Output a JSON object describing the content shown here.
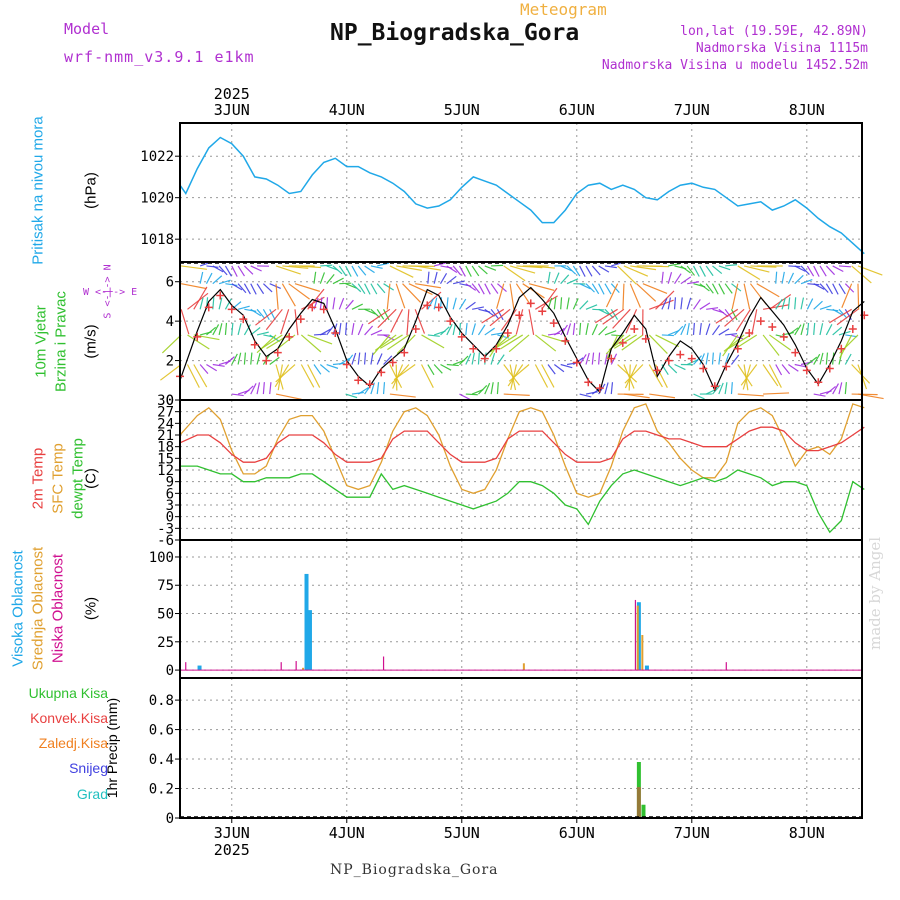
{
  "header": {
    "model_label": "Model",
    "model_name": "wrf-nmm_v3.9.1 e1km",
    "meteogram": "Meteogram",
    "title": "NP_Biogradska_Gora",
    "lonlat": "lon,lat (19.59E, 42.89N)",
    "elevation": "Nadmorska Visina 1115m",
    "model_elevation": "Nadmorska Visina u modelu 1452.52m"
  },
  "footer": {
    "station": "NP_Biogradska_Gora",
    "watermark": "made by Angel"
  },
  "time_axis": {
    "year": "2025",
    "days": [
      "3JUN",
      "4JUN",
      "5JUN",
      "6JUN",
      "7JUN",
      "8JUN"
    ]
  },
  "panels": {
    "pressure": {
      "label": "Pritisak na nivou mora",
      "unit": "(hPa)",
      "ticks": [
        "1022",
        "1020",
        "1018"
      ]
    },
    "wind": {
      "label1": "10m Vjetar",
      "label2": "Brzina i Pravac",
      "unit": "(m/s)",
      "compass": "W <-|-> E",
      "compass_ns": "S <-|-> N",
      "ticks": [
        "6",
        "4",
        "2",
        "0"
      ]
    },
    "temp": {
      "label1": "2m Temp",
      "label2": "SFC Temp",
      "label3": "dewpt Temp",
      "unit": "(C)",
      "ticks": [
        "30",
        "27",
        "24",
        "21",
        "18",
        "15",
        "12",
        "9",
        "6",
        "3",
        "0",
        "-3",
        "-6"
      ]
    },
    "cloud": {
      "label1": "Visoka Oblacnost",
      "label2": "Srednja Oblacnost",
      "label3": "Niska Oblacnost",
      "unit": "(%)",
      "ticks": [
        "100",
        "75",
        "50",
        "25",
        "0"
      ]
    },
    "precip": {
      "labels": [
        "Ukupna Kisa",
        "Konvek.Kisa",
        "Zaledj.Kisa",
        "Snijeg",
        "Grad"
      ],
      "unit": "1hr Precip (mm)",
      "ticks": [
        "0.8",
        "0.6",
        "0.4",
        "0.2",
        "0"
      ]
    }
  },
  "colors": {
    "pressure": "#20a8e8",
    "temp2m": "#e84040",
    "sfc": "#e0a030",
    "dewpt": "#30c030",
    "high_cloud": "#20a8e8",
    "mid_cloud": "#e0a030",
    "low_cloud": "#d01090",
    "rain_total": "#30c030",
    "rain_conv": "#e84040",
    "freezing": "#f08020",
    "snow": "#4040e0",
    "hail": "#20c0c0",
    "wind_speed": "#000000",
    "wind_gust": "#e84040",
    "purple": "#b030d0"
  },
  "chart_data": [
    {
      "type": "line",
      "title": "Pritisak na nivou mora",
      "ylabel": "(hPa)",
      "ylim": [
        1016.9,
        1023.6
      ],
      "x_unit": "days since 2 JUN 2025 00 UTC",
      "x": [
        2.55,
        2.6,
        2.7,
        2.8,
        2.9,
        3.0,
        3.1,
        3.2,
        3.3,
        3.4,
        3.5,
        3.6,
        3.7,
        3.8,
        3.9,
        4.0,
        4.1,
        4.2,
        4.3,
        4.4,
        4.5,
        4.6,
        4.7,
        4.8,
        4.9,
        5.0,
        5.1,
        5.2,
        5.3,
        5.4,
        5.5,
        5.6,
        5.7,
        5.8,
        5.9,
        6.0,
        6.1,
        6.2,
        6.3,
        6.4,
        6.5,
        6.6,
        6.7,
        6.8,
        6.9,
        7.0,
        7.1,
        7.2,
        7.3,
        7.4,
        7.5,
        7.6,
        7.7,
        7.8,
        7.9,
        8.0,
        8.1,
        8.2,
        8.3,
        8.4,
        8.5
      ],
      "series": [
        {
          "name": "Pritisak",
          "values": [
            1020.6,
            1020.2,
            1021.4,
            1022.4,
            1022.9,
            1022.6,
            1022.0,
            1021.0,
            1020.9,
            1020.6,
            1020.2,
            1020.3,
            1021.1,
            1021.7,
            1021.9,
            1021.5,
            1021.5,
            1021.2,
            1021.0,
            1020.7,
            1020.3,
            1019.7,
            1019.5,
            1019.6,
            1019.9,
            1020.5,
            1021.0,
            1020.8,
            1020.6,
            1020.2,
            1019.8,
            1019.4,
            1018.8,
            1018.8,
            1019.4,
            1020.2,
            1020.6,
            1020.7,
            1020.4,
            1020.6,
            1020.4,
            1020.0,
            1019.9,
            1020.3,
            1020.6,
            1020.7,
            1020.5,
            1020.4,
            1020.0,
            1019.6,
            1019.7,
            1019.8,
            1019.4,
            1019.6,
            1019.9,
            1019.5,
            1019.0,
            1018.6,
            1018.3,
            1017.8,
            1017.3
          ]
        }
      ]
    },
    {
      "type": "line",
      "title": "10m Vjetar Brzina i Pravac",
      "ylabel": "(m/s)",
      "ylim": [
        0,
        7
      ],
      "x_unit": "days since 2 JUN 2025 00 UTC",
      "x": [
        2.55,
        2.7,
        2.8,
        2.9,
        3.0,
        3.1,
        3.2,
        3.3,
        3.4,
        3.5,
        3.6,
        3.7,
        3.8,
        3.9,
        4.0,
        4.1,
        4.2,
        4.3,
        4.4,
        4.5,
        4.6,
        4.7,
        4.8,
        4.9,
        5.0,
        5.1,
        5.2,
        5.3,
        5.4,
        5.5,
        5.6,
        5.7,
        5.8,
        5.9,
        6.0,
        6.1,
        6.2,
        6.3,
        6.4,
        6.5,
        6.6,
        6.7,
        6.8,
        6.9,
        7.0,
        7.1,
        7.2,
        7.3,
        7.4,
        7.5,
        7.6,
        7.7,
        7.8,
        7.9,
        8.0,
        8.1,
        8.2,
        8.3,
        8.4,
        8.5
      ],
      "series": [
        {
          "name": "Brzina",
          "values": [
            1.0,
            3.5,
            5.0,
            5.6,
            4.8,
            4.3,
            3.0,
            2.2,
            2.6,
            3.6,
            4.4,
            5.1,
            4.9,
            3.6,
            2.0,
            1.2,
            0.7,
            1.6,
            2.1,
            2.6,
            4.0,
            5.6,
            5.3,
            4.2,
            3.4,
            2.8,
            2.2,
            2.8,
            3.8,
            5.2,
            5.7,
            5.1,
            4.4,
            3.2,
            2.1,
            1.0,
            0.4,
            2.6,
            3.4,
            4.3,
            3.6,
            1.2,
            2.2,
            3.0,
            2.6,
            1.8,
            0.5,
            1.8,
            2.9,
            4.2,
            5.2,
            4.5,
            3.8,
            2.8,
            1.6,
            0.8,
            1.8,
            3.0,
            4.5,
            5.0
          ]
        },
        {
          "name": "Udar",
          "values": [
            1.2,
            3.2,
            4.7,
            5.3,
            4.6,
            4.1,
            2.8,
            2.0,
            2.4,
            3.2,
            4.1,
            4.7,
            4.6,
            3.4,
            1.8,
            1.0,
            0.8,
            1.4,
            1.9,
            2.4,
            3.6,
            4.8,
            4.7,
            4.0,
            3.2,
            2.6,
            2.1,
            2.6,
            3.4,
            4.3,
            4.9,
            4.5,
            3.9,
            3.0,
            1.9,
            0.9,
            0.6,
            2.1,
            2.9,
            3.6,
            3.1,
            1.5,
            2.0,
            2.3,
            2.1,
            1.6,
            0.7,
            1.7,
            2.6,
            3.4,
            4.0,
            3.7,
            3.2,
            2.4,
            1.5,
            0.9,
            1.6,
            2.6,
            3.6,
            4.3
          ]
        }
      ]
    },
    {
      "type": "line",
      "title": "2m Temp / SFC Temp / dewpt Temp",
      "ylabel": "(C)",
      "ylim": [
        -6,
        30
      ],
      "x_unit": "days since 2 JUN 2025 00 UTC",
      "x": [
        2.55,
        2.7,
        2.8,
        2.9,
        3.0,
        3.1,
        3.2,
        3.3,
        3.4,
        3.5,
        3.6,
        3.7,
        3.8,
        3.9,
        4.0,
        4.1,
        4.2,
        4.3,
        4.4,
        4.5,
        4.6,
        4.7,
        4.8,
        4.9,
        5.0,
        5.1,
        5.2,
        5.3,
        5.4,
        5.5,
        5.6,
        5.7,
        5.8,
        5.9,
        6.0,
        6.1,
        6.2,
        6.3,
        6.4,
        6.5,
        6.6,
        6.7,
        6.8,
        6.9,
        7.0,
        7.1,
        7.2,
        7.3,
        7.4,
        7.5,
        7.6,
        7.7,
        7.8,
        7.9,
        8.0,
        8.1,
        8.2,
        8.3,
        8.4,
        8.5
      ],
      "series": [
        {
          "name": "2m Temp",
          "values": [
            19,
            21,
            21,
            19,
            16,
            14,
            14,
            15,
            19,
            21,
            21,
            21,
            19,
            16,
            14,
            14,
            14,
            15,
            20,
            22,
            22,
            22,
            19,
            16,
            14,
            14,
            14,
            15,
            20,
            22,
            22,
            22,
            19,
            16,
            14,
            14,
            14,
            15,
            20,
            22,
            22,
            21,
            20,
            20,
            19,
            18,
            18,
            18,
            20,
            22,
            23,
            23,
            22,
            19,
            17,
            17,
            18,
            19,
            21,
            23
          ]
        },
        {
          "name": "SFC Temp",
          "values": [
            21,
            26,
            28,
            25,
            17,
            11,
            11,
            13,
            20,
            25,
            26,
            26,
            22,
            15,
            8,
            7,
            8,
            14,
            22,
            27,
            28,
            26,
            21,
            13,
            7,
            6,
            7,
            12,
            20,
            27,
            28,
            27,
            21,
            13,
            6,
            5,
            6,
            13,
            22,
            28,
            29,
            22,
            19,
            15,
            12,
            10,
            10,
            14,
            24,
            27,
            28,
            26,
            20,
            13,
            17,
            18,
            16,
            20,
            29,
            28
          ]
        },
        {
          "name": "dewpt Temp",
          "values": [
            13,
            13,
            12,
            11,
            11,
            9,
            9,
            10,
            10,
            10,
            11,
            11,
            9,
            7,
            5,
            5,
            5,
            11,
            7,
            8,
            7,
            6,
            5,
            4,
            3,
            2,
            3,
            4,
            6,
            9,
            9,
            8,
            6,
            3,
            2,
            -2,
            4,
            8,
            11,
            12,
            11,
            10,
            9,
            8,
            9,
            10,
            9,
            10,
            12,
            11,
            10,
            8,
            9,
            9,
            8,
            1,
            -4,
            -1,
            9,
            7
          ]
        }
      ]
    },
    {
      "type": "bar",
      "title": "Visoka / Srednja / Niska Oblacnost",
      "ylabel": "(%)",
      "ylim": [
        0,
        100
      ],
      "x_unit": "days since 2 JUN 2025 00 UTC",
      "series": [
        {
          "name": "Visoka Oblacnost",
          "x": [
            2.72,
            3.65,
            3.68,
            6.54,
            6.61
          ],
          "values": [
            4,
            85,
            53,
            60,
            4
          ]
        },
        {
          "name": "Srednja Oblacnost",
          "x": [
            3.62,
            5.54,
            6.53,
            6.57
          ],
          "values": [
            2,
            6,
            57,
            31
          ]
        },
        {
          "name": "Niska Oblacnost",
          "x": [
            2.6,
            3.43,
            3.56,
            4.32,
            6.51,
            7.3
          ],
          "values": [
            7,
            7,
            8,
            12,
            62,
            7
          ]
        }
      ]
    },
    {
      "type": "bar",
      "title": "1hr Precip",
      "ylabel": "1hr Precip (mm)",
      "ylim": [
        0,
        0.95
      ],
      "x_unit": "days since 2 JUN 2025 00 UTC",
      "series": [
        {
          "name": "Ukupna Kisa",
          "x": [
            6.54,
            6.58
          ],
          "values": [
            0.38,
            0.09
          ]
        },
        {
          "name": "Konvek.Kisa",
          "x": [
            6.54
          ],
          "values": [
            0.21
          ]
        }
      ]
    }
  ]
}
